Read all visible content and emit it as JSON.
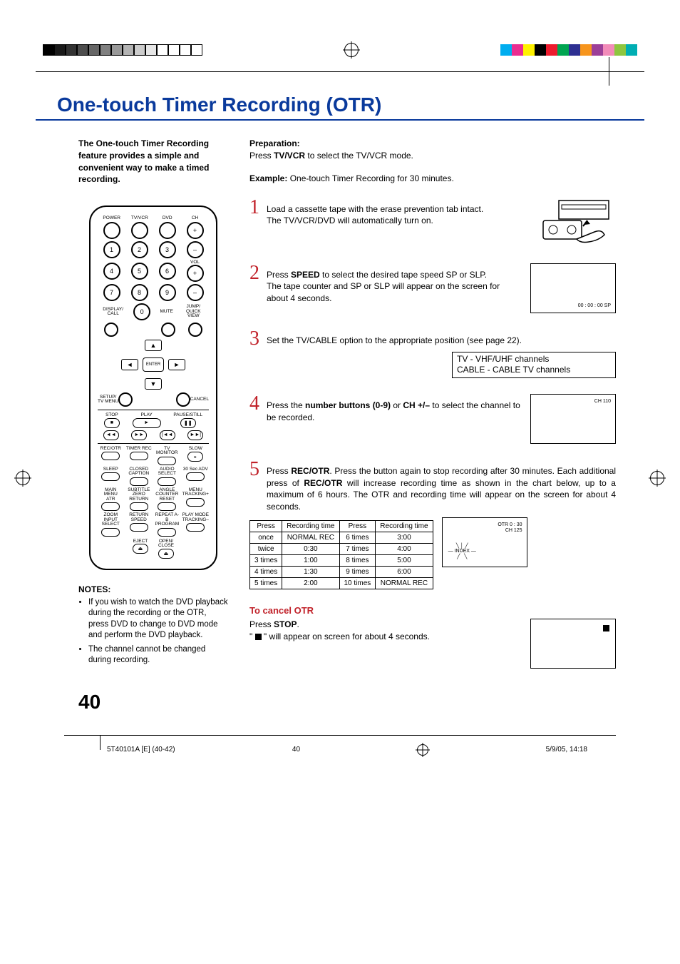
{
  "title": "One-touch Timer Recording (OTR)",
  "intro": "The One-touch Timer Recording feature provides a simple and convenient way to make a timed recording.",
  "notes_heading": "NOTES:",
  "notes": [
    "If you wish to watch the DVD playback during the recording or the OTR, press DVD to change to DVD mode and perform the DVD playback.",
    "The channel cannot be changed during recording."
  ],
  "preparation_label": "Preparation:",
  "preparation_text_1": "Press ",
  "preparation_bold": "TV/VCR",
  "preparation_text_2": " to select the TV/VCR mode.",
  "example_label": "Example:",
  "example_text": " One-touch Timer Recording for 30 minutes.",
  "steps": {
    "s1": {
      "num": "1",
      "body": "Load a cassette tape with the erase prevention tab intact.\nThe TV/VCR/DVD will automatically turn on."
    },
    "s2": {
      "num": "2",
      "pre": "Press ",
      "b": "SPEED",
      "post": " to select the desired tape speed SP or SLP.\nThe tape counter and SP or SLP will appear on the screen for about 4 seconds.",
      "screen": "00 : 00 : 00  SP"
    },
    "s3": {
      "num": "3",
      "body": "Set the TV/CABLE option to the appropriate position (see page 22).",
      "tv_lines": [
        "TV       -  VHF/UHF channels",
        "CABLE  -  CABLE TV channels"
      ]
    },
    "s4": {
      "num": "4",
      "pre": "Press the ",
      "b": "number buttons (0-9)",
      "mid": " or ",
      "b2": "CH +/–",
      "post": " to select the channel to be recorded.",
      "screen": "CH  110"
    },
    "s5": {
      "num": "5",
      "pre": "Press ",
      "b": "REC/OTR",
      "mid": ". Press the button again to stop recording after 30 minutes. Each additional press of ",
      "b2": "REC/OTR",
      "post": " will increase recording time as shown in the chart below, up to a maximum of 6 hours. The OTR and recording time will appear on the screen for about 4 seconds."
    },
    "s5_screen_lines": [
      "OTR  0 : 30",
      "CH  125"
    ],
    "s5_index": "— INDEX —"
  },
  "rec_table": {
    "headers": [
      "Press",
      "Recording time",
      "Press",
      "Recording time"
    ],
    "rows": [
      [
        "once",
        "NORMAL REC",
        "6 times",
        "3:00"
      ],
      [
        "twice",
        "0:30",
        "7 times",
        "4:00"
      ],
      [
        "3 times",
        "1:00",
        "8 times",
        "5:00"
      ],
      [
        "4 times",
        "1:30",
        "9 times",
        "6:00"
      ],
      [
        "5 times",
        "2:00",
        "10 times",
        "NORMAL REC"
      ]
    ]
  },
  "cancel": {
    "title": "To cancel OTR",
    "line1_pre": "Press ",
    "line1_b": "STOP",
    "line1_post": ".",
    "line2": "\" ■ \" will appear on screen for about 4 seconds."
  },
  "page_number": "40",
  "footer": {
    "doc": "5T40101A [E] (40-42)",
    "page": "40",
    "date": "5/9/05, 14:18"
  },
  "remote_labels": {
    "power": "POWER",
    "tvvcr": "TV/VCR",
    "dvd": "DVD",
    "ch": "CH",
    "vol": "VOL",
    "mute": "MUTE",
    "display": "DISPLAY/\nCALL",
    "jump": "JUMP/\nQUICK VIEW",
    "setup": "SETUP/\nTV MENU",
    "cancel": "CANCEL",
    "enter": "ENTER",
    "stop": "STOP",
    "play": "PLAY",
    "pause": "PAUSE/STILL",
    "rew": "SEARCH\n◄◄REW",
    "ffwd": "SEARCH\nF.FWD►►",
    "index": "INDEX/SKIP",
    "rec": "REC/OTR",
    "timer": "TIMER REC",
    "tvmon": "TV MONITOR",
    "slow": "SLOW",
    "sleep": "SLEEP",
    "cc": "CLOSED\nCAPTION",
    "audio": "AUDIO\nSELECT",
    "adv": "30 Sec ADV",
    "main": "MAIN MENU\nATR",
    "sub": "SUBTITLE\nZERO RETURN",
    "angle": "ANGLE\nCOUNTER RESET",
    "menu": "MENU\nTRACKING+",
    "zoom": "ZOOM\nINPUT SELECT",
    "ret": "RETURN\nSPEED",
    "repeat": "REPEAT A-B\nPROGRAM",
    "pmode": "PLAY MODE\nTRACKING–",
    "eject": "EJECT",
    "open": "OPEN/\nCLOSE"
  },
  "colors": {
    "title": "#0a3a9c",
    "accent": "#c1222a",
    "gray_bars": [
      "#000000",
      "#1a1a1a",
      "#333333",
      "#4d4d4d",
      "#666666",
      "#808080",
      "#999999",
      "#b3b3b3",
      "#cccccc",
      "#e6e6e6",
      "#ffffff",
      "#ffffff",
      "#ffffff",
      "#ffffff"
    ],
    "color_bars": [
      "#00adef",
      "#ea2d91",
      "#fff200",
      "#000000",
      "#ed1b2e",
      "#00a551",
      "#2e3092",
      "#f7951d",
      "#9c3f98",
      "#f28bb9",
      "#8dc63f",
      "#00aeb3"
    ]
  }
}
